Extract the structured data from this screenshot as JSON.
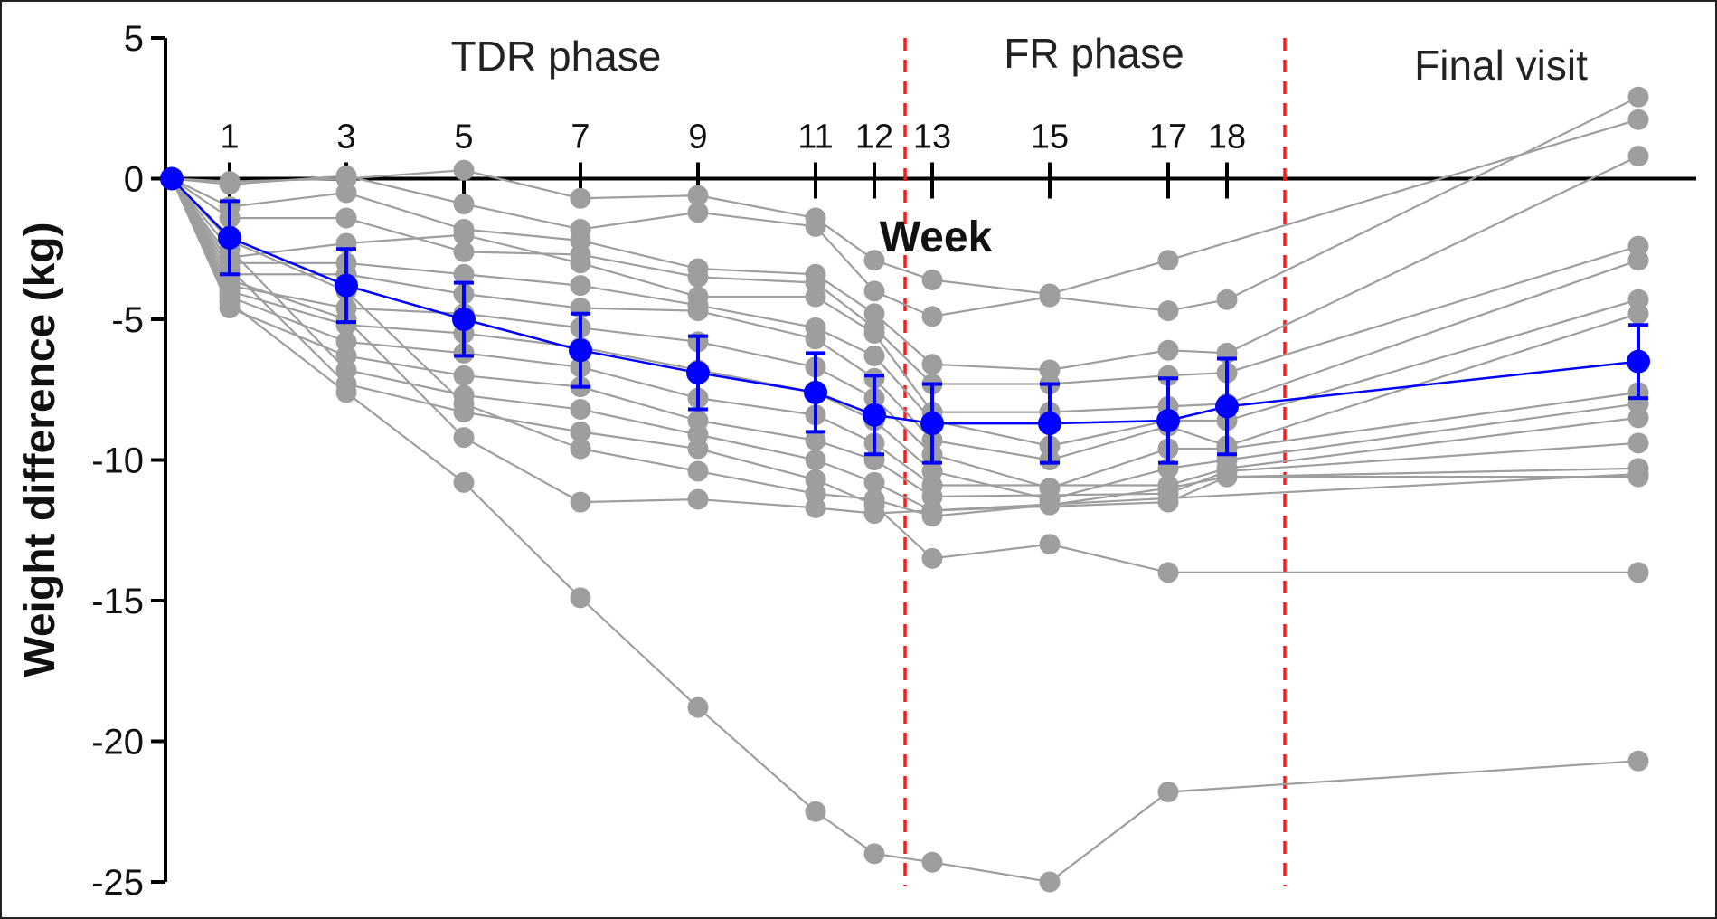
{
  "chart_data": {
    "type": "line",
    "title": "",
    "xlabel": "Week",
    "ylabel": "Weight difference (kg)",
    "ylim": [
      -25,
      5
    ],
    "yticks": [
      5,
      0,
      -5,
      -10,
      -15,
      -20,
      -25
    ],
    "x_ticks": [
      "1",
      "3",
      "5",
      "7",
      "9",
      "11",
      "12",
      "13",
      "15",
      "17",
      "18"
    ],
    "phases": [
      "TDR phase",
      "FR phase",
      "Final visit"
    ],
    "phase_boundaries_after_week": [
      12,
      18
    ],
    "grid": false,
    "legend": "none",
    "colors": {
      "individual": "#9e9e9e",
      "mean": "#0000ff",
      "phase_line": "#ff1a1a",
      "axis": "#000000"
    },
    "x_order": [
      "0",
      "1",
      "3",
      "5",
      "7",
      "9",
      "11",
      "12",
      "13",
      "15",
      "17",
      "18",
      "Final"
    ],
    "mean_series": {
      "values": [
        0,
        -2.1,
        -3.8,
        -5.0,
        -6.1,
        -6.9,
        -7.6,
        -8.4,
        -8.7,
        -8.7,
        -8.6,
        -8.1,
        -6.5
      ],
      "error": [
        0,
        1.3,
        1.3,
        1.3,
        1.3,
        1.3,
        1.4,
        1.4,
        1.4,
        1.4,
        1.5,
        1.7,
        1.3
      ]
    },
    "individual_series": [
      {
        "values": [
          0,
          -4.4,
          -7.6,
          -10.8,
          -14.9,
          -18.8,
          -22.5,
          -24.0,
          -24.3,
          -25.0,
          -21.8,
          null,
          -20.7
        ]
      },
      {
        "values": [
          0,
          -0.1,
          0.0,
          0.3,
          -0.7,
          -0.6,
          -1.4,
          -2.9,
          -3.6,
          -4.1,
          -2.9,
          null,
          2.1
        ]
      },
      {
        "values": [
          0,
          -0.2,
          0.1,
          -0.9,
          -1.8,
          -1.2,
          -1.7,
          -4.0,
          -4.9,
          -4.2,
          -4.7,
          -4.3,
          2.9
        ]
      },
      {
        "values": [
          0,
          -1.0,
          -0.5,
          -1.8,
          -2.2,
          -3.2,
          -3.4,
          -4.8,
          -6.6,
          -6.8,
          -6.1,
          -6.2,
          0.8
        ]
      },
      {
        "values": [
          0,
          -1.4,
          -1.4,
          -2.6,
          -2.7,
          -3.5,
          -3.7,
          -5.3,
          -7.3,
          -7.3,
          -7.0,
          -6.9,
          -2.4
        ]
      },
      {
        "values": [
          0,
          -2.8,
          -2.3,
          -2.0,
          -3.0,
          -4.2,
          -4.2,
          -5.5,
          -8.3,
          -8.3,
          -8.1,
          -8.0,
          -2.9
        ]
      },
      {
        "values": [
          0,
          -3.0,
          -3.0,
          -3.4,
          -3.8,
          -4.5,
          -5.3,
          -6.3,
          -8.6,
          -9.5,
          -8.6,
          -8.6,
          -4.3
        ]
      },
      {
        "values": [
          0,
          -3.4,
          -3.4,
          -4.1,
          -4.6,
          -4.7,
          -5.7,
          -7.1,
          -9.3,
          -10.0,
          -8.8,
          -9.5,
          -4.8
        ]
      },
      {
        "values": [
          0,
          -3.8,
          -4.6,
          -4.8,
          -5.3,
          -5.8,
          -6.7,
          -7.8,
          -9.8,
          -11.0,
          -9.6,
          -9.6,
          -7.6
        ]
      },
      {
        "values": [
          0,
          -4.0,
          -5.2,
          -5.5,
          -6.0,
          -6.8,
          -7.6,
          -8.6,
          -10.4,
          -11.4,
          -10.3,
          -10.0,
          -8.0
        ]
      },
      {
        "values": [
          0,
          -4.2,
          -5.8,
          -6.2,
          -6.7,
          -7.8,
          -8.4,
          -9.4,
          -10.9,
          null,
          -10.9,
          -10.3,
          -8.5
        ]
      },
      {
        "values": [
          0,
          -4.6,
          -6.3,
          -7.0,
          -7.4,
          -8.6,
          -9.3,
          -10.0,
          -11.3,
          null,
          -11.2,
          -10.4,
          -9.4
        ]
      },
      {
        "values": [
          0,
          -2.5,
          -6.8,
          -7.7,
          -8.2,
          -9.1,
          -10.0,
          -10.8,
          -11.8,
          null,
          -11.5,
          -10.6,
          -10.3
        ]
      },
      {
        "values": [
          0,
          -3.2,
          -7.3,
          -8.3,
          -9.0,
          -9.6,
          -10.7,
          -11.6,
          -13.5,
          -13.0,
          -14.0,
          null,
          -14.0
        ]
      },
      {
        "values": [
          0,
          -3.6,
          -5.0,
          -9.2,
          -11.5,
          -11.4,
          -11.7,
          -11.9,
          null,
          null,
          null,
          null,
          -10.5
        ]
      },
      {
        "values": [
          0,
          -2.2,
          -4.0,
          -8.0,
          -9.6,
          -10.4,
          -11.2,
          -11.4,
          -12.0,
          -11.6,
          -11.0,
          -10.6,
          -10.6
        ]
      }
    ]
  }
}
